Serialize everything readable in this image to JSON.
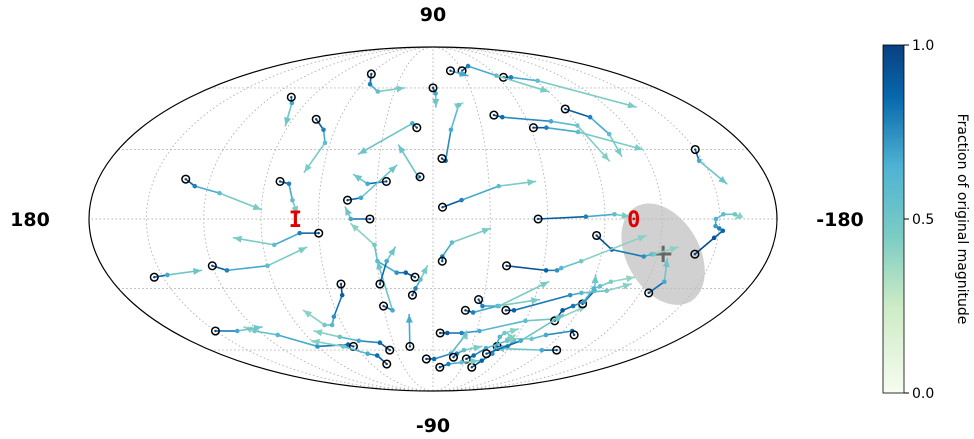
{
  "chart_data": {
    "type": "scatter",
    "projection": "mollweide",
    "grid": true,
    "axis_labels": {
      "top": "90",
      "bottom": "-90",
      "left": "180",
      "right": "-180"
    },
    "markers": [
      {
        "label": "I",
        "lon": 72,
        "lat": 0,
        "color": "#e00000"
      },
      {
        "label": "0",
        "lon": -105,
        "lat": 0,
        "color": "#e00000"
      }
    ],
    "source": {
      "symbol": "+",
      "lon": -123,
      "lat": -15,
      "ellipse_deg": [
        13,
        19
      ]
    },
    "colorbar": {
      "label": "Fraction of original magnitude",
      "ticks": [
        1.0,
        0.5,
        0.0
      ],
      "tick_labels": [
        "1.0",
        "0.5",
        "0.0"
      ],
      "colormap": "GnBu"
    },
    "trails": [
      [
        [
          60,
          68
        ],
        [
          53,
          62
        ],
        [
          43,
          58
        ],
        [
          23,
          60
        ]
      ],
      [
        [
          -65,
          66
        ],
        [
          -72,
          66
        ],
        [
          -92,
          64
        ],
        [
          -140,
          50
        ]
      ],
      [
        [
          -30,
          70
        ],
        [
          -40,
          73
        ],
        [
          -60,
          67
        ],
        [
          -90,
          58
        ]
      ],
      [
        [
          -18,
          70
        ],
        [
          -33,
          67
        ]
      ],
      [
        [
          105,
          55
        ],
        [
          100,
          52
        ],
        [
          92,
          41
        ]
      ],
      [
        [
          0,
          60
        ],
        [
          -2,
          57
        ],
        [
          -2,
          50
        ]
      ],
      [
        [
          75,
          44
        ],
        [
          67,
          39
        ],
        [
          63,
          33
        ],
        [
          70,
          20
        ]
      ],
      [
        [
          10,
          40
        ],
        [
          13,
          42
        ],
        [
          42,
          28
        ]
      ],
      [
        [
          -40,
          46
        ],
        [
          -45,
          45
        ],
        [
          -75,
          43
        ],
        [
          -90,
          41
        ],
        [
          -98,
          25
        ]
      ],
      [
        [
          -90,
          49
        ],
        [
          -102,
          45
        ],
        [
          -106,
          37
        ],
        [
          -106,
          27
        ]
      ],
      [
        [
          -62,
          40
        ],
        [
          -70,
          40
        ],
        [
          -88,
          38
        ],
        [
          -120,
          30
        ]
      ],
      [
        [
          -150,
          30
        ],
        [
          -148,
          25
        ],
        [
          -157,
          15
        ]
      ],
      [
        [
          133,
          17
        ],
        [
          127,
          14
        ],
        [
          113,
          11
        ],
        [
          90,
          4
        ]
      ],
      [
        [
          82,
          16
        ],
        [
          77,
          15
        ],
        [
          74,
          8
        ],
        [
          71,
          2
        ]
      ],
      [
        [
          -5,
          5
        ],
        [
          -15,
          8
        ],
        [
          -35,
          14
        ],
        [
          -55,
          16
        ]
      ],
      [
        [
          7,
          18
        ],
        [
          8,
          18
        ],
        [
          20,
          32
        ]
      ],
      [
        [
          -5,
          26
        ],
        [
          -7,
          25
        ],
        [
          -11,
          39
        ],
        [
          -18,
          51
        ],
        [
          -21,
          52
        ]
      ],
      [
        [
          25,
          16
        ],
        [
          35,
          15
        ],
        [
          43,
          19
        ]
      ],
      [
        [
          45,
          8
        ],
        [
          38,
          9
        ],
        [
          20,
          23
        ]
      ],
      [
        [
          60,
          -6
        ],
        [
          70,
          -6
        ],
        [
          84,
          -11
        ],
        [
          105,
          -8
        ]
      ],
      [
        [
          33,
          0
        ],
        [
          43,
          0
        ],
        [
          46,
          5
        ]
      ],
      [
        [
          10,
          -25
        ],
        [
          15,
          -23
        ],
        [
          20,
          -23
        ],
        [
          30,
          -18
        ],
        [
          31,
          -11
        ],
        [
          43,
          -2
        ]
      ],
      [
        [
          -5,
          -18
        ],
        [
          -5,
          -16
        ],
        [
          -10,
          -10
        ],
        [
          -30,
          -4
        ]
      ],
      [
        [
          -55,
          0
        ],
        [
          -80,
          1
        ],
        [
          -95,
          2
        ],
        [
          -103,
          1
        ]
      ],
      [
        [
          -86,
          -7
        ],
        [
          -95,
          -13
        ],
        [
          -113,
          -16
        ],
        [
          -117,
          -15
        ],
        [
          -118,
          -15
        ],
        [
          -130,
          -12
        ]
      ],
      [
        [
          -40,
          -20
        ],
        [
          -62,
          -22
        ],
        [
          -68,
          -22
        ],
        [
          -70,
          -21
        ],
        [
          -80,
          -18
        ],
        [
          -112,
          -7
        ]
      ],
      [
        [
          52,
          -28
        ],
        [
          53,
          -33
        ],
        [
          63,
          -43
        ],
        [
          67,
          -47
        ],
        [
          72,
          -47
        ],
        [
          80,
          -40
        ]
      ],
      [
        [
          30,
          -38
        ],
        [
          25,
          -40
        ],
        [
          30,
          -18
        ]
      ],
      [
        [
          -5,
          -51
        ],
        [
          -10,
          -51
        ],
        [
          -20,
          -51
        ],
        [
          -32,
          -50
        ],
        [
          -60,
          -45
        ],
        [
          -80,
          -44
        ],
        [
          -93,
          -38
        ]
      ],
      [
        [
          -90,
          -37
        ],
        [
          -93,
          -31
        ],
        [
          -90,
          -24
        ]
      ],
      [
        [
          -125,
          -32
        ],
        [
          -130,
          -27
        ],
        [
          -126,
          -17
        ]
      ],
      [
        [
          -140,
          -15
        ],
        [
          -148,
          -8
        ],
        [
          -152,
          -5
        ],
        [
          -150,
          -4
        ],
        [
          -148,
          -3
        ],
        [
          -148,
          0
        ],
        [
          -152,
          2
        ],
        [
          -158,
          2
        ],
        [
          -160,
          1
        ],
        [
          -158,
          0
        ]
      ],
      [
        [
          6,
          -65
        ],
        [
          -1,
          -65
        ],
        [
          -15,
          -62
        ],
        [
          -23,
          -52
        ],
        [
          -23,
          -50
        ]
      ],
      [
        [
          -50,
          -58
        ],
        [
          -58,
          -58
        ],
        [
          -60,
          -55
        ],
        [
          -52,
          -51
        ]
      ],
      [
        [
          -100,
          -60
        ],
        [
          -88,
          -60
        ],
        [
          -50,
          -59
        ]
      ],
      [
        [
          -100,
          -52
        ],
        [
          -96,
          -50
        ],
        [
          -80,
          -52
        ],
        [
          -72,
          -54
        ],
        [
          -53,
          -54
        ]
      ],
      [
        [
          18,
          -58
        ],
        [
          15,
          -42
        ]
      ],
      [
        [
          12,
          -33
        ],
        [
          10,
          -30
        ],
        [
          7,
          -26
        ],
        [
          3,
          -20
        ]
      ],
      [
        [
          62,
          -58
        ],
        [
          65,
          -57
        ],
        [
          90,
          -58
        ],
        [
          110,
          -52
        ],
        [
          123,
          -50
        ],
        [
          127,
          -48
        ]
      ],
      [
        [
          -27,
          -35
        ],
        [
          -30,
          -38
        ],
        [
          -40,
          -38
        ],
        [
          -65,
          -27
        ]
      ],
      [
        [
          -79,
          -45
        ],
        [
          -80,
          -40
        ],
        [
          -85,
          -38
        ],
        [
          -90,
          -36
        ],
        [
          -92,
          -30
        ],
        [
          -95,
          -29
        ],
        [
          -100,
          -27
        ],
        [
          -112,
          -25
        ]
      ],
      [
        [
          -45,
          -40
        ],
        [
          -50,
          -40
        ],
        [
          -80,
          -33
        ],
        [
          -86,
          -32
        ],
        [
          -100,
          -31
        ],
        [
          -112,
          -28
        ]
      ],
      [
        [
          -20,
          -40
        ],
        [
          -25,
          -41
        ],
        [
          -39,
          -38
        ],
        [
          -63,
          -35
        ]
      ],
      [
        [
          -30,
          -65
        ],
        [
          -35,
          -63
        ],
        [
          -42,
          -59
        ],
        [
          -55,
          -55
        ],
        [
          -58,
          -52
        ]
      ],
      [
        [
          -40,
          -70
        ],
        [
          -45,
          -66
        ],
        [
          -50,
          -62
        ],
        [
          -48,
          -53
        ],
        [
          -50,
          -51
        ],
        [
          -58,
          -49
        ]
      ],
      [
        [
          -18,
          -64
        ],
        [
          -20,
          -62
        ],
        [
          -25,
          -60
        ],
        [
          -38,
          -58
        ]
      ],
      [
        [
          -7,
          -70
        ],
        [
          -15,
          -68
        ],
        [
          -27,
          -67
        ],
        [
          -42,
          -66
        ]
      ],
      [
        [
          -45,
          -62
        ],
        [
          -65,
          -55
        ],
        [
          -82,
          -42
        ]
      ],
      [
        [
          30,
          -28
        ],
        [
          25,
          -18
        ],
        [
          20,
          -12
        ]
      ],
      [
        [
          35,
          -60
        ],
        [
          40,
          -56
        ],
        [
          55,
          -55
        ],
        [
          67,
          -53
        ],
        [
          82,
          -50
        ]
      ],
      [
        [
          45,
          -68
        ],
        [
          48,
          -63
        ],
        [
          55,
          -62
        ],
        [
          70,
          -58
        ],
        [
          90,
          -55
        ]
      ],
      [
        [
          120,
          -20
        ],
        [
          113,
          -22
        ],
        [
          90,
          -20
        ],
        [
          67,
          -12
        ]
      ],
      [
        [
          155,
          -25
        ],
        [
          147,
          -24
        ],
        [
          127,
          -22
        ]
      ],
      [
        [
          150,
          -50
        ],
        [
          135,
          -50
        ],
        [
          115,
          -48
        ]
      ]
    ]
  }
}
